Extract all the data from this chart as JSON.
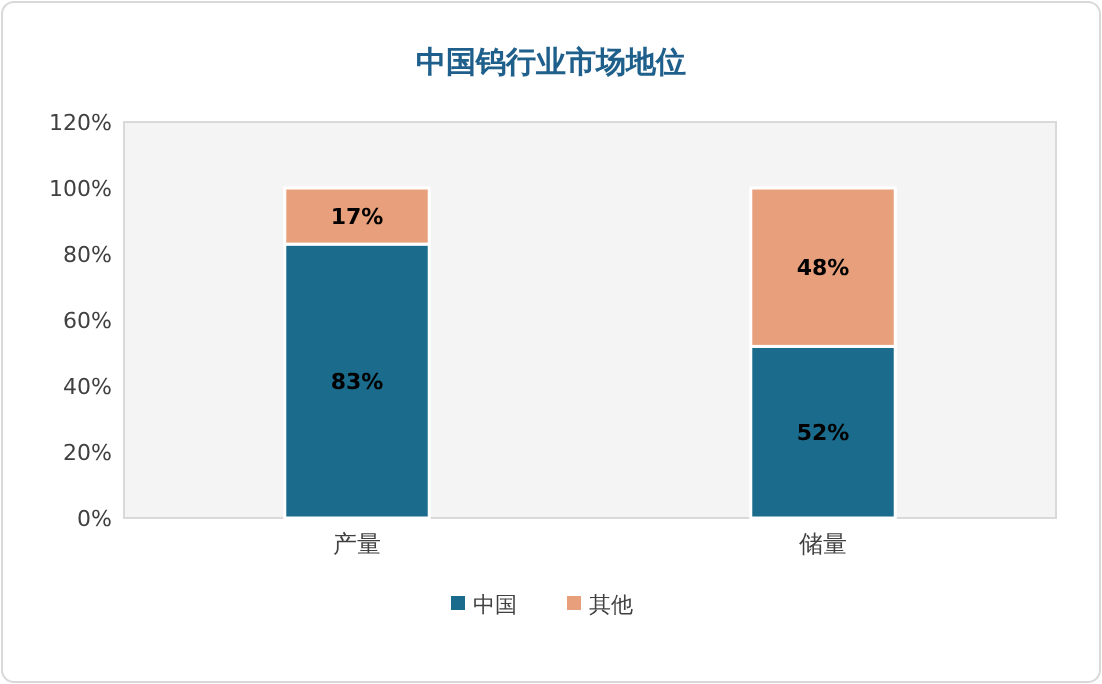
{
  "chart_data": {
    "type": "bar",
    "stacked": true,
    "title": "中国钨行业市场地位",
    "categories": [
      "产量",
      "储量"
    ],
    "series": [
      {
        "name": "中国",
        "color": "#1b6b8c",
        "values": [
          83,
          52
        ],
        "value_labels": [
          "83%",
          "52%"
        ]
      },
      {
        "name": "其他",
        "color": "#e8a07c",
        "values": [
          17,
          48
        ],
        "value_labels": [
          "17%",
          "48%"
        ]
      }
    ],
    "ylim": [
      0,
      120
    ],
    "yticks": [
      {
        "value": 0,
        "label": "0%"
      },
      {
        "value": 20,
        "label": "20%"
      },
      {
        "value": 40,
        "label": "40%"
      },
      {
        "value": 60,
        "label": "60%"
      },
      {
        "value": 80,
        "label": "80%"
      },
      {
        "value": 100,
        "label": "100%"
      },
      {
        "value": 120,
        "label": "120%"
      }
    ],
    "legend": "bottom"
  }
}
